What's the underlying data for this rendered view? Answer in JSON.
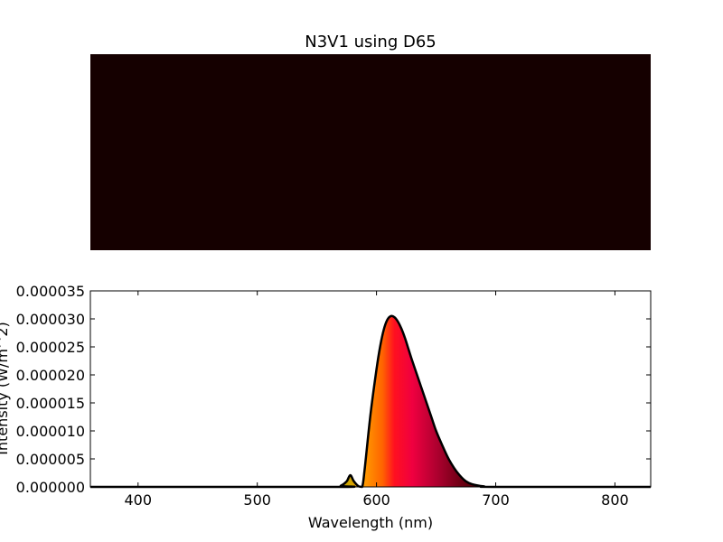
{
  "chart_data": [
    {
      "type": "heatmap",
      "title": "N3V1 using D65",
      "color_swatch": "#150000"
    },
    {
      "type": "area",
      "xlabel": "Wavelength (nm)",
      "ylabel": "Intensity (W/m^2)",
      "xlim": [
        360,
        830
      ],
      "ylim": [
        0,
        3.5e-05
      ],
      "x_ticks": [
        400,
        500,
        600,
        700,
        800
      ],
      "x_tick_labels": [
        "400",
        "500",
        "600",
        "700",
        "800"
      ],
      "y_ticks": [
        0,
        5e-06,
        1e-05,
        1.5e-05,
        2e-05,
        2.5e-05,
        3e-05,
        3.5e-05
      ],
      "y_tick_labels": [
        "0.000000",
        "0.000005",
        "0.000010",
        "0.000015",
        "0.000020",
        "0.000025",
        "0.000030",
        "0.000035"
      ],
      "grid": false,
      "series": [
        {
          "x": [
            360,
            565,
            570,
            575,
            578,
            581,
            585,
            588,
            590,
            595,
            600,
            603,
            606,
            609,
            612,
            615,
            618,
            621,
            624,
            627,
            630,
            634,
            638,
            642,
            646,
            650,
            655,
            660,
            665,
            670,
            675,
            680,
            690,
            700,
            830
          ],
          "y": [
            0,
            0,
            2e-07,
            1e-06,
            2.1e-06,
            1e-06,
            1e-07,
            0,
            3e-06,
            1.3e-05,
            2.1e-05,
            2.5e-05,
            2.8e-05,
            2.98e-05,
            3.05e-05,
            3.03e-05,
            2.95e-05,
            2.82e-05,
            2.65e-05,
            2.45e-05,
            2.25e-05,
            2e-05,
            1.75e-05,
            1.5e-05,
            1.25e-05,
            1e-05,
            7.5e-06,
            5.2e-06,
            3.4e-06,
            2e-06,
            1e-06,
            5e-07,
            1e-07,
            0,
            0
          ]
        }
      ],
      "fill_colors": [
        {
          "wavelength": 565,
          "color": "#b4a000"
        },
        {
          "wavelength": 578,
          "color": "#d2a500"
        },
        {
          "wavelength": 590,
          "color": "#ff9a00"
        },
        {
          "wavelength": 605,
          "color": "#ff6400"
        },
        {
          "wavelength": 615,
          "color": "#ff1020"
        },
        {
          "wavelength": 630,
          "color": "#f00040"
        },
        {
          "wavelength": 650,
          "color": "#b00030"
        },
        {
          "wavelength": 670,
          "color": "#700015"
        },
        {
          "wavelength": 690,
          "color": "#400000"
        }
      ]
    }
  ]
}
